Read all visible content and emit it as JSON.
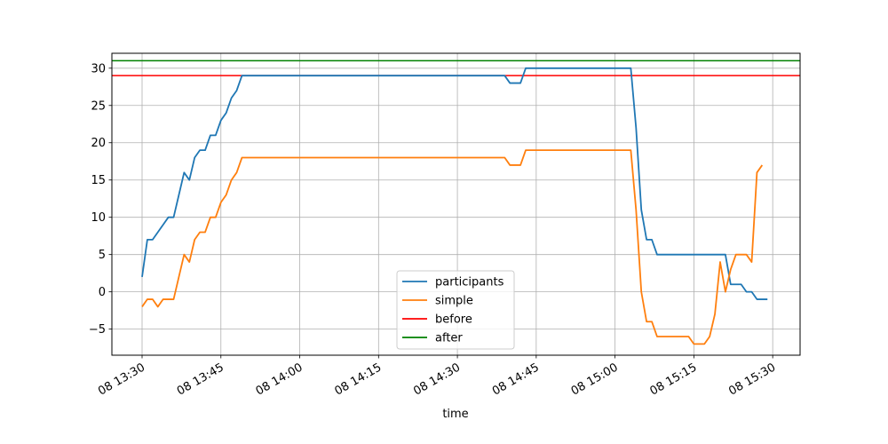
{
  "chart_data": {
    "type": "line",
    "xlabel": "time",
    "ylabel": "",
    "ylim": [
      -8.5,
      32
    ],
    "yticks": [
      -5,
      0,
      5,
      10,
      15,
      20,
      25,
      30
    ],
    "ytick_labels": [
      "−5",
      "0",
      "5",
      "10",
      "15",
      "20",
      "25",
      "30"
    ],
    "xlim_minutes_from_1330": [
      -9.5,
      15.0
    ],
    "xticks": [
      "08 13:30",
      "08 13:45",
      "08 14:00",
      "08 14:15",
      "08 14:30",
      "08 14:45",
      "08 15:00",
      "08 15:15",
      "08 15:30"
    ],
    "grid": true,
    "legend_position": "bottom-center",
    "series": [
      {
        "name": "participants",
        "color": "#1f77b4",
        "points": [
          [
            "13:30",
            2
          ],
          [
            "13:31",
            7
          ],
          [
            "13:32",
            7
          ],
          [
            "13:33",
            8
          ],
          [
            "13:34",
            9
          ],
          [
            "13:35",
            10
          ],
          [
            "13:36",
            10
          ],
          [
            "13:37",
            13
          ],
          [
            "13:38",
            16
          ],
          [
            "13:39",
            15
          ],
          [
            "13:40",
            18
          ],
          [
            "13:41",
            19
          ],
          [
            "13:42",
            19
          ],
          [
            "13:43",
            21
          ],
          [
            "13:44",
            21
          ],
          [
            "13:45",
            23
          ],
          [
            "13:46",
            24
          ],
          [
            "13:47",
            26
          ],
          [
            "13:48",
            27
          ],
          [
            "13:49",
            29
          ],
          [
            "14:39",
            29
          ],
          [
            "14:40",
            28
          ],
          [
            "14:41",
            28
          ],
          [
            "14:42",
            28
          ],
          [
            "14:43",
            30
          ],
          [
            "15:03",
            30
          ],
          [
            "15:04",
            22
          ],
          [
            "15:05",
            11
          ],
          [
            "15:06",
            7
          ],
          [
            "15:07",
            7
          ],
          [
            "15:08",
            5
          ],
          [
            "15:21",
            5
          ],
          [
            "15:22",
            1
          ],
          [
            "15:23",
            1
          ],
          [
            "15:24",
            1
          ],
          [
            "15:25",
            0
          ],
          [
            "15:26",
            0
          ],
          [
            "15:27",
            -1
          ],
          [
            "15:28",
            -1
          ],
          [
            "15:29",
            -1
          ]
        ]
      },
      {
        "name": "simple",
        "color": "#ff7f0e",
        "points": [
          [
            "13:30",
            -2
          ],
          [
            "13:31",
            -1
          ],
          [
            "13:32",
            -1
          ],
          [
            "13:33",
            -2
          ],
          [
            "13:34",
            -1
          ],
          [
            "13:35",
            -1
          ],
          [
            "13:36",
            -1
          ],
          [
            "13:37",
            2
          ],
          [
            "13:38",
            5
          ],
          [
            "13:39",
            4
          ],
          [
            "13:40",
            7
          ],
          [
            "13:41",
            8
          ],
          [
            "13:42",
            8
          ],
          [
            "13:43",
            10
          ],
          [
            "13:44",
            10
          ],
          [
            "13:45",
            12
          ],
          [
            "13:46",
            13
          ],
          [
            "13:47",
            15
          ],
          [
            "13:48",
            16
          ],
          [
            "13:49",
            18
          ],
          [
            "14:39",
            18
          ],
          [
            "14:40",
            17
          ],
          [
            "14:41",
            17
          ],
          [
            "14:42",
            17
          ],
          [
            "14:43",
            19
          ],
          [
            "15:03",
            19
          ],
          [
            "15:04",
            11
          ],
          [
            "15:05",
            0
          ],
          [
            "15:06",
            -4
          ],
          [
            "15:07",
            -4
          ],
          [
            "15:08",
            -6
          ],
          [
            "15:14",
            -6
          ],
          [
            "15:15",
            -7
          ],
          [
            "15:16",
            -7
          ],
          [
            "15:17",
            -7
          ],
          [
            "15:18",
            -6
          ],
          [
            "15:19",
            -3
          ],
          [
            "15:20",
            4
          ],
          [
            "15:21",
            0
          ],
          [
            "15:22",
            3
          ],
          [
            "15:23",
            5
          ],
          [
            "15:24",
            5
          ],
          [
            "15:25",
            5
          ],
          [
            "15:26",
            4
          ],
          [
            "15:27",
            16
          ],
          [
            "15:28",
            17
          ]
        ]
      },
      {
        "name": " before",
        "color": "#ff0000",
        "hline": 29
      },
      {
        "name": " after",
        "color": "#008000",
        "hline": 31
      }
    ]
  }
}
